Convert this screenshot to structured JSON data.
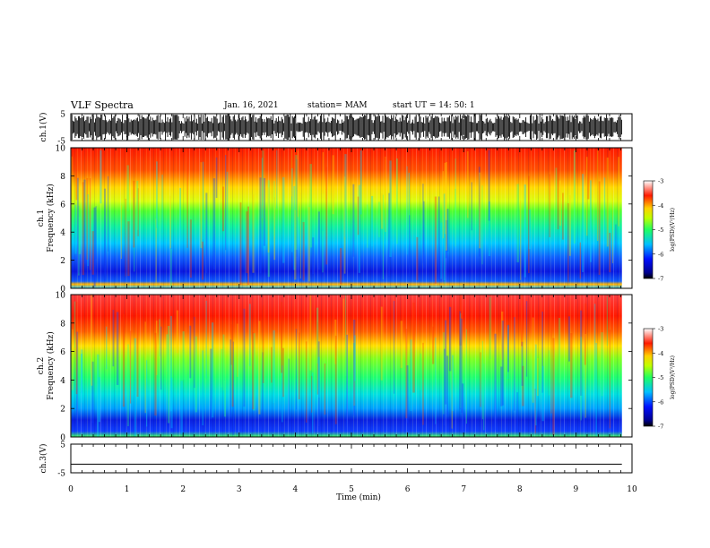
{
  "header": {
    "title": "VLF Spectra",
    "date": "Jan. 16, 2021",
    "station": "station= MAM",
    "start": "start  UT =   14: 50: 1"
  },
  "chart_data": [
    {
      "type": "line",
      "panel": "ch1-waveform",
      "ylabel": "ch.1(V)",
      "ylim": [
        -5,
        5
      ],
      "yticks": [
        "5",
        "-5"
      ],
      "xlim": [
        0,
        10
      ],
      "x_extent_min": 9.82
    },
    {
      "type": "heatmap",
      "panel": "ch1-spectrogram",
      "ylabel_line1": "ch.1",
      "ylabel_line2": "Frequency  (kHz)",
      "ylim": [
        0,
        10
      ],
      "yticks": [
        "0",
        "2",
        "4",
        "6",
        "8",
        "10"
      ],
      "xlim": [
        0,
        10
      ],
      "x_extent_min": 9.82,
      "colorbar": {
        "label": "log(PSD)(V²/Hz)",
        "range": [
          -7,
          -3
        ],
        "ticks": [
          "-3",
          "-4",
          "-5",
          "-6",
          "-7"
        ]
      }
    },
    {
      "type": "heatmap",
      "panel": "ch2-spectrogram",
      "ylabel_line1": "ch.2",
      "ylabel_line2": "Frequency  (kHz)",
      "ylim": [
        0,
        10
      ],
      "yticks": [
        "0",
        "2",
        "4",
        "6",
        "8",
        "10"
      ],
      "xlim": [
        0,
        10
      ],
      "x_extent_min": 9.82,
      "colorbar": {
        "label": "log(PSD)(V²/Hz)",
        "range": [
          -7,
          -3
        ],
        "ticks": [
          "-3",
          "-4",
          "-5",
          "-6",
          "-7"
        ]
      }
    },
    {
      "type": "line",
      "panel": "ch3-waveform",
      "ylabel": "ch.3(V)",
      "ylim": [
        -5,
        5
      ],
      "yticks": [
        "5",
        "-5"
      ],
      "xlim": [
        0,
        10
      ],
      "x_extent_min": 9.82,
      "series": [
        {
          "x": [
            0,
            9.82
          ],
          "y": [
            -2,
            -2
          ]
        }
      ]
    }
  ],
  "xaxis": {
    "label": "Time  (min)",
    "ticks": [
      "0",
      "1",
      "2",
      "3",
      "4",
      "5",
      "6",
      "7",
      "8",
      "9",
      "10"
    ]
  }
}
